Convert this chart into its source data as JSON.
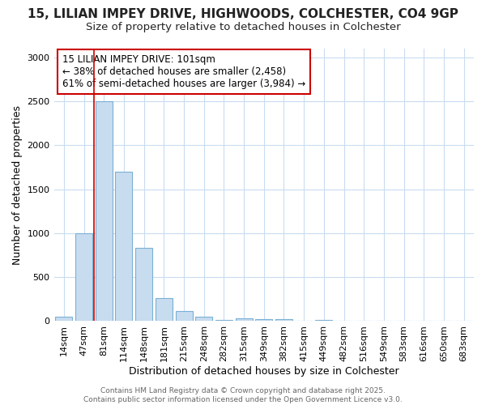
{
  "title_line1": "15, LILIAN IMPEY DRIVE, HIGHWOODS, COLCHESTER, CO4 9GP",
  "title_line2": "Size of property relative to detached houses in Colchester",
  "xlabel": "Distribution of detached houses by size in Colchester",
  "ylabel": "Number of detached properties",
  "categories": [
    "14sqm",
    "47sqm",
    "81sqm",
    "114sqm",
    "148sqm",
    "181sqm",
    "215sqm",
    "248sqm",
    "282sqm",
    "315sqm",
    "349sqm",
    "382sqm",
    "415sqm",
    "449sqm",
    "482sqm",
    "516sqm",
    "549sqm",
    "583sqm",
    "616sqm",
    "650sqm",
    "683sqm"
  ],
  "values": [
    50,
    1000,
    2500,
    1700,
    830,
    260,
    115,
    50,
    10,
    35,
    25,
    25,
    0,
    10,
    0,
    0,
    0,
    0,
    0,
    0,
    0
  ],
  "bar_color": "#c8dcf0",
  "bar_edge_color": "#7ab0d4",
  "bar_edge_width": 0.8,
  "vline_color": "#cc0000",
  "vline_linewidth": 1.2,
  "vline_x": 2.0,
  "annotation_text": "15 LILIAN IMPEY DRIVE: 101sqm\n← 38% of detached houses are smaller (2,458)\n61% of semi-detached houses are larger (3,984) →",
  "annotation_box_color": "white",
  "annotation_box_edge_color": "#cc0000",
  "ylim": [
    0,
    3100
  ],
  "yticks": [
    0,
    500,
    1000,
    1500,
    2000,
    2500,
    3000
  ],
  "footer_text": "Contains HM Land Registry data © Crown copyright and database right 2025.\nContains public sector information licensed under the Open Government Licence v3.0.",
  "bg_color": "#ffffff",
  "grid_color": "#c8dcf0",
  "title_fontsize": 11,
  "subtitle_fontsize": 9.5,
  "axis_label_fontsize": 9,
  "tick_fontsize": 8,
  "footer_fontsize": 6.5
}
